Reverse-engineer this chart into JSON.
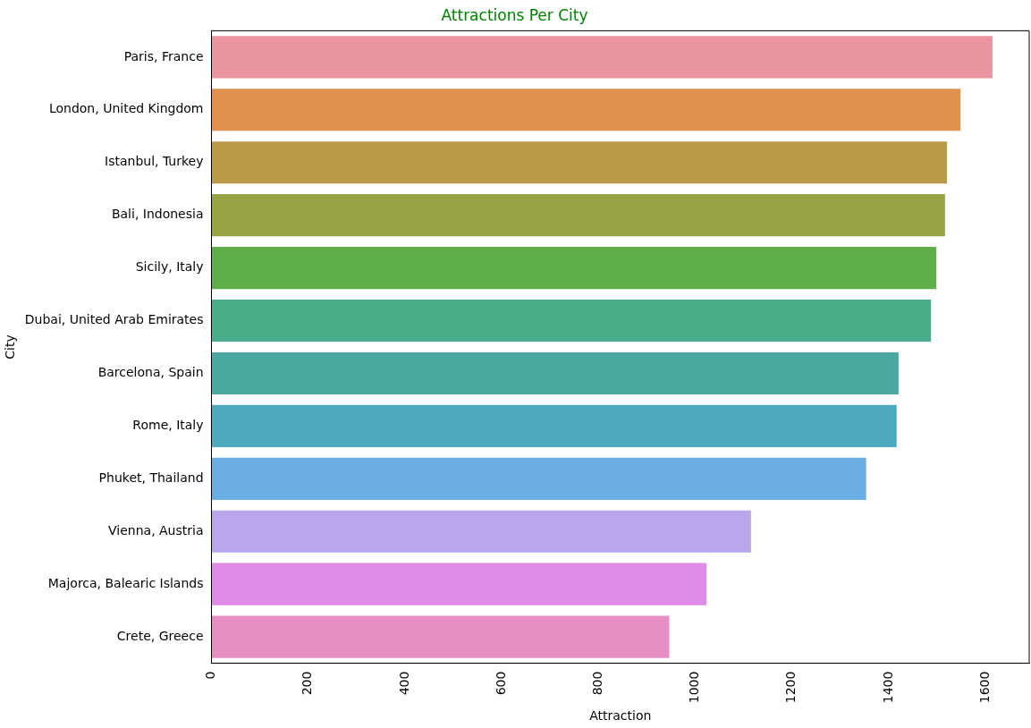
{
  "chart_data": {
    "type": "bar",
    "orientation": "horizontal",
    "title": "Attractions Per City",
    "xlabel": "Attraction",
    "ylabel": "City",
    "categories": [
      "Paris, France",
      "London, United Kingdom",
      "Istanbul, Turkey",
      "Bali, Indonesia",
      "Sicily, Italy",
      "Dubai, United Arab Emirates",
      "Barcelona, Spain",
      "Rome, Italy",
      "Phuket, Thailand",
      "Vienna, Austria",
      "Majorca, Balearic Islands",
      "Crete, Greece"
    ],
    "values": [
      1614,
      1548,
      1520,
      1516,
      1498,
      1487,
      1420,
      1416,
      1353,
      1115,
      1023,
      946
    ],
    "colors": [
      "#ea959f",
      "#e1914f",
      "#b89a47",
      "#98a346",
      "#5fae47",
      "#48ad88",
      "#4aa8a0",
      "#4ea9be",
      "#6aade2",
      "#b8a7ea",
      "#df8ce8",
      "#e78fc5"
    ],
    "xlim": [
      0,
      1690
    ],
    "xticks": [
      0,
      200,
      400,
      600,
      800,
      1000,
      1200,
      1400,
      1600
    ],
    "grid": false,
    "legend": false
  }
}
